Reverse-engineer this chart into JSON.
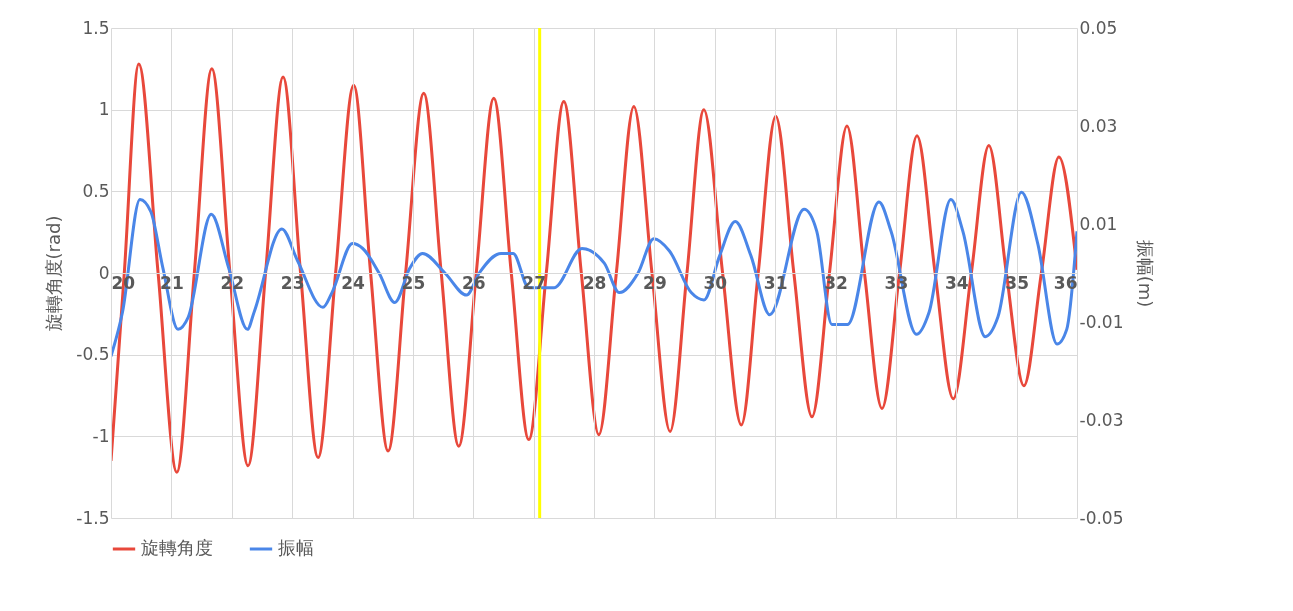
{
  "chart_data": {
    "type": "line",
    "xlim": [
      20,
      36
    ],
    "xticks": [
      20,
      21,
      22,
      23,
      24,
      25,
      26,
      27,
      28,
      29,
      30,
      31,
      32,
      33,
      34,
      35,
      36
    ],
    "ylabel": "旋轉角度(rad)",
    "y2label": "振幅(m)",
    "ylim": [
      -1.5,
      1.5
    ],
    "yticks": [
      -1.5,
      -1,
      -0.5,
      0,
      0.5,
      1,
      1.5
    ],
    "y2lim": [
      -0.05,
      0.05
    ],
    "y2ticks": [
      -0.05,
      -0.03,
      -0.01,
      0.01,
      0.03,
      0.05
    ],
    "grid": true,
    "legend": "bottom",
    "ref_lines": [
      {
        "axis": "x",
        "value": 27.1,
        "color": "#ffff00"
      }
    ],
    "series": [
      {
        "name": "旋轉角度",
        "color": "#e8483b",
        "x": [
          20,
          20.22,
          20.46,
          20.78,
          21.09,
          21.38,
          21.67,
          21.97,
          22.27,
          22.56,
          22.85,
          23.14,
          23.43,
          23.72,
          24.02,
          24.3,
          24.59,
          24.88,
          25.18,
          25.47,
          25.76,
          26.05,
          26.34,
          26.63,
          26.92,
          27.21,
          27.5,
          27.79,
          28.08,
          28.37,
          28.66,
          28.96,
          29.26,
          29.54,
          29.82,
          30.13,
          30.44,
          30.72,
          31.01,
          31.31,
          31.61,
          31.9,
          32.19,
          32.48,
          32.77,
          33.06,
          33.35,
          33.65,
          33.95,
          34.25,
          34.54,
          34.83,
          35.12,
          35.41,
          35.7,
          36
        ],
        "values": [
          -1.15,
          0,
          1.28,
          0,
          -1.22,
          0,
          1.25,
          0,
          -1.18,
          0,
          1.2,
          0,
          -1.13,
          0,
          1.15,
          0,
          -1.09,
          0,
          1.1,
          0,
          -1.06,
          0,
          1.07,
          0,
          -1.02,
          0,
          1.05,
          0,
          -0.99,
          0,
          1.02,
          0,
          -0.97,
          0,
          1.0,
          0,
          -0.93,
          0,
          0.96,
          0,
          -0.88,
          0,
          0.9,
          0,
          -0.83,
          0,
          0.84,
          0,
          -0.77,
          0,
          0.78,
          0,
          -0.69,
          0,
          0.71,
          0.02
        ]
      },
      {
        "name": "振幅",
        "color": "#4a86e8",
        "axis": "y2",
        "x": [
          20,
          20.19,
          20.48,
          20.66,
          20.86,
          21.11,
          21.28,
          21.66,
          21.95,
          22.26,
          22.37,
          22.83,
          23.09,
          23.51,
          23.66,
          24.0,
          24.17,
          24.44,
          24.7,
          24.95,
          25.16,
          25.53,
          25.89,
          26.1,
          26.46,
          26.66,
          26.92,
          27.34,
          27.8,
          28.17,
          28.42,
          28.73,
          28.99,
          29.25,
          29.61,
          29.82,
          30.08,
          30.34,
          30.6,
          30.91,
          31.48,
          31.69,
          31.94,
          32.2,
          32.72,
          32.92,
          33.34,
          33.55,
          33.91,
          34.11,
          34.48,
          34.69,
          35.08,
          35.35,
          35.67,
          35.83,
          36
        ],
        "values": [
          -0.017,
          -0.008,
          0.015,
          0.0125,
          0.001,
          -0.0115,
          -0.009,
          0.012,
          0.001,
          -0.0115,
          -0.008,
          0.009,
          0.0025,
          -0.007,
          -0.004,
          0.006,
          0.005,
          0,
          -0.006,
          0.001,
          0.004,
          0,
          -0.0045,
          0,
          0.004,
          0.004,
          -0.003,
          -0.003,
          0.005,
          0.002,
          -0.004,
          0,
          0.007,
          0.0045,
          -0.004,
          -0.0055,
          0.0035,
          0.0105,
          0.0035,
          -0.0085,
          0.013,
          0.0085,
          -0.0105,
          -0.0105,
          0.0145,
          0.0085,
          -0.0125,
          -0.008,
          0.015,
          0.0085,
          -0.013,
          -0.009,
          0.0165,
          0.006,
          -0.0145,
          -0.0115,
          0.0085
        ]
      }
    ]
  }
}
